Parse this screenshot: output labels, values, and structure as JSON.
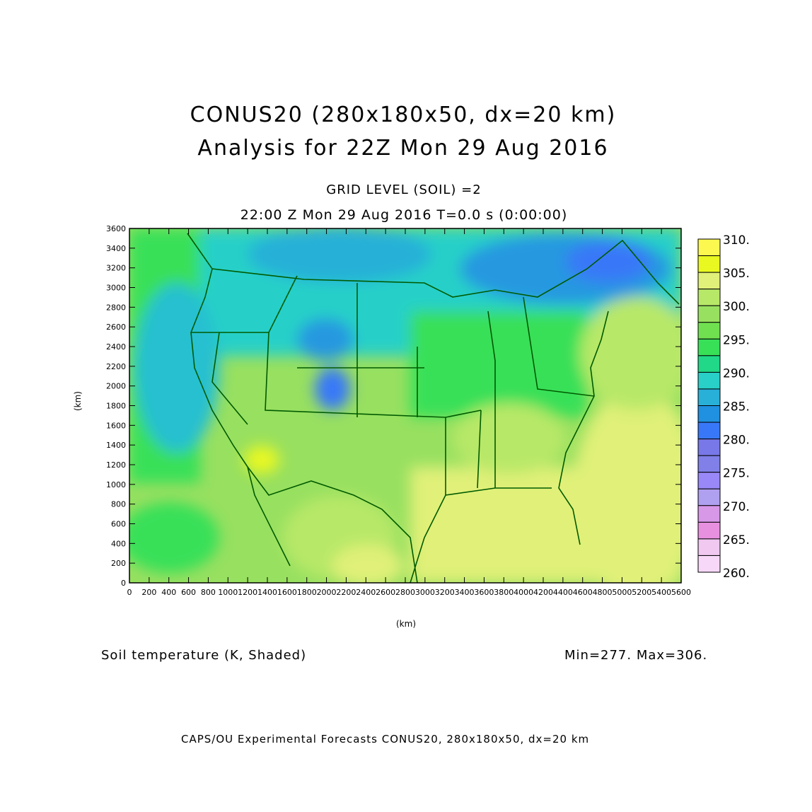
{
  "header": {
    "title_line1": "CONUS20 (280x180x50, dx=20 km)",
    "title_line2": "Analysis  for  22Z  Mon  29  Aug  2016",
    "grid_level": "GRID LEVEL (SOIL) =2",
    "time_line": "22:00 Z Mon 29 Aug 2016    T=0.0 s (0:00:00)"
  },
  "footer": {
    "field_label": "Soil temperature (K, Shaded)",
    "min_max": "Min=277.  Max=306.",
    "credit": "CAPS/OU Experimental Forecasts  CONUS20, 280x180x50, dx=20 km"
  },
  "chart_data": {
    "type": "heatmap",
    "title": "Soil temperature (K, Shaded)",
    "xlabel": "(km)",
    "ylabel": "(km)",
    "xlim": [
      0,
      5600
    ],
    "ylim": [
      0,
      3600
    ],
    "x_ticks": [
      "0",
      "200",
      "400",
      "600",
      "800",
      "1000",
      "1200",
      "1400",
      "1600",
      "1800",
      "2000",
      "2200",
      "2400",
      "2600",
      "2800",
      "3000",
      "3200",
      "3400",
      "3600",
      "3800",
      "4000",
      "4200",
      "4400",
      "4600",
      "4800",
      "5000",
      "5200",
      "5400",
      "5600"
    ],
    "y_ticks": [
      "0",
      "200",
      "400",
      "600",
      "800",
      "1000",
      "1200",
      "1400",
      "1600",
      "1800",
      "2000",
      "2200",
      "2400",
      "2600",
      "2800",
      "3000",
      "3200",
      "3400",
      "3600"
    ],
    "min": 277,
    "max": 306,
    "colorbar": {
      "labels": [
        "310.",
        "305.",
        "300.",
        "295.",
        "290.",
        "285.",
        "280.",
        "275.",
        "270.",
        "265.",
        "260."
      ],
      "range": [
        260,
        310
      ],
      "step": 2.5,
      "colors_top_to_bottom": [
        "#fcf850",
        "#e8f820",
        "#e0f078",
        "#b8e868",
        "#98e060",
        "#70e050",
        "#38e058",
        "#20d888",
        "#28d0c8",
        "#28b0d8",
        "#2090e0",
        "#3878f8",
        "#7878e8",
        "#8080e8",
        "#9888f8",
        "#b0a0f0",
        "#d898e8",
        "#e890e0",
        "#f0c8f0",
        "#f8d8f8"
      ]
    }
  }
}
